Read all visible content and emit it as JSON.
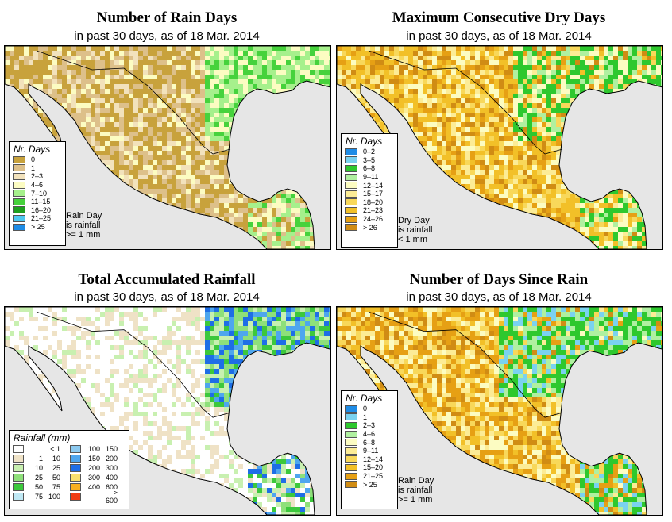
{
  "panels": [
    {
      "title": "Number of Rain Days",
      "subtitle": "in past 30 days, as of  18 Mar. 2014",
      "legend": {
        "title": "Nr. Days",
        "items": [
          {
            "label": "0",
            "color": "#c8a23c"
          },
          {
            "label": "1",
            "color": "#ddc08a"
          },
          {
            "label": "2–3",
            "color": "#f2e2bc"
          },
          {
            "label": "4–6",
            "color": "#fcfcc2"
          },
          {
            "label": "7–10",
            "color": "#a6f08c"
          },
          {
            "label": "11–15",
            "color": "#46d23c"
          },
          {
            "label": "16–20",
            "color": "#1ea01e"
          },
          {
            "label": "21–25",
            "color": "#4ec8f0"
          },
          {
            "label": "> 25",
            "color": "#1e8ce6"
          }
        ],
        "note": [
          "Rain Day",
          "is rainfall",
          ">= 1 mm"
        ]
      }
    },
    {
      "title": "Maximum Consecutive Dry Days",
      "subtitle": "in past 30 days, as of  18 Mar. 2014",
      "legend": {
        "title": "Nr. Days",
        "items": [
          {
            "label": "0–2",
            "color": "#1e8ce6"
          },
          {
            "label": "3–5",
            "color": "#7ad2f0"
          },
          {
            "label": "6–8",
            "color": "#2ec82e"
          },
          {
            "label": "9–11",
            "color": "#b0f0a0"
          },
          {
            "label": "12–14",
            "color": "#fcfcc2"
          },
          {
            "label": "15–17",
            "color": "#fcec96"
          },
          {
            "label": "18–20",
            "color": "#f8d85a"
          },
          {
            "label": "21–23",
            "color": "#f2c028"
          },
          {
            "label": "24–26",
            "color": "#e6a014"
          },
          {
            "label": "> 26",
            "color": "#d08c14"
          }
        ],
        "note": [
          "Dry Day",
          "is rainfall",
          "< 1 mm"
        ]
      }
    },
    {
      "title": "Total Accumulated Rainfall",
      "subtitle": "in past 30 days, as of  18 Mar. 2014",
      "legend": {
        "title": "Rainfall (mm)",
        "items": [
          {
            "from": "",
            "to": "< 1",
            "color": "#ffffff"
          },
          {
            "from": "1",
            "to": "10",
            "color": "#efe2c6"
          },
          {
            "from": "10",
            "to": "25",
            "color": "#c8f0b0"
          },
          {
            "from": "25",
            "to": "50",
            "color": "#8ee07a"
          },
          {
            "from": "50",
            "to": "75",
            "color": "#3cc83c"
          },
          {
            "from": "75",
            "to": "100",
            "color": "#bfe8f4"
          },
          {
            "from": "100",
            "to": "150",
            "color": "#8ccaf0"
          },
          {
            "from": "150",
            "to": "200",
            "color": "#4ea6ee"
          },
          {
            "from": "200",
            "to": "300",
            "color": "#1e6ee6"
          },
          {
            "from": "300",
            "to": "400",
            "color": "#f8e070"
          },
          {
            "from": "400",
            "to": "600",
            "color": "#f8b020"
          },
          {
            "from": "",
            "to": "> 600",
            "color": "#f03c14"
          }
        ]
      }
    },
    {
      "title": "Number of Days Since Rain",
      "subtitle": "in past 30 days, as of  18 Mar. 2014",
      "legend": {
        "title": "Nr. Days",
        "items": [
          {
            "label": "0",
            "color": "#1e8ce6"
          },
          {
            "label": "1",
            "color": "#7ad2f0"
          },
          {
            "label": "2–3",
            "color": "#2ec82e"
          },
          {
            "label": "4–6",
            "color": "#b0f0a0"
          },
          {
            "label": "6–8",
            "color": "#fcfcc2"
          },
          {
            "label": "9–11",
            "color": "#fcec96"
          },
          {
            "label": "12–14",
            "color": "#f8d85a"
          },
          {
            "label": "15–20",
            "color": "#f2c028"
          },
          {
            "label": "21–25",
            "color": "#e6a014"
          },
          {
            "label": "> 25",
            "color": "#d08c14"
          }
        ],
        "note": [
          "Rain Day",
          "is rainfall",
          ">= 1 mm"
        ]
      }
    }
  ],
  "colors": {
    "water": "#e6e6e6",
    "border": "#000000"
  }
}
